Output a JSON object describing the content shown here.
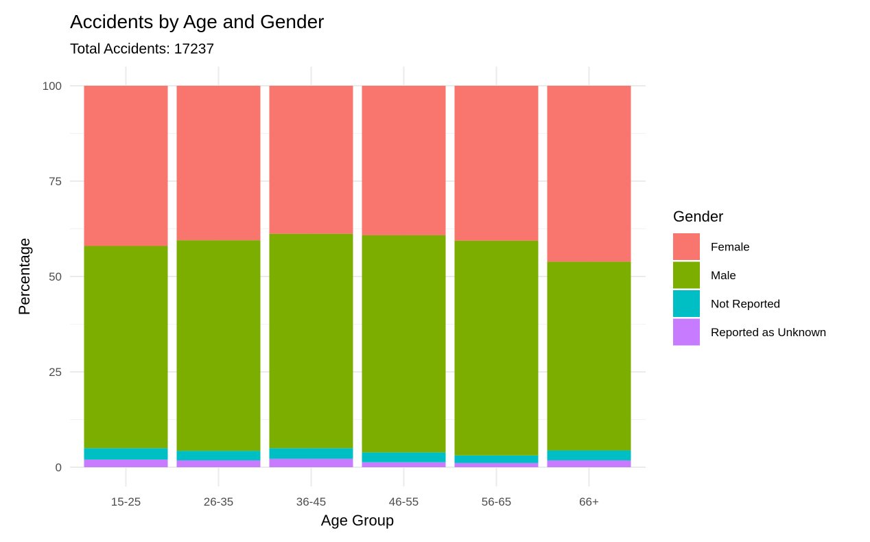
{
  "chart_data": {
    "type": "bar",
    "stacked": true,
    "title": "Accidents by Age and Gender",
    "subtitle": "Total Accidents:  17237",
    "xlabel": "Age Group",
    "ylabel": "Percentage",
    "ylim": [
      0,
      100
    ],
    "yticks": [
      0,
      25,
      50,
      75,
      100
    ],
    "categories": [
      "15-25",
      "26-35",
      "36-45",
      "46-55",
      "56-65",
      "66+"
    ],
    "series": [
      {
        "name": "Reported as Unknown",
        "color": "#C77CFF",
        "values": [
          2.0,
          1.8,
          2.2,
          1.3,
          1.1,
          1.8
        ]
      },
      {
        "name": "Not Reported",
        "color": "#00BFC4",
        "values": [
          3.0,
          2.5,
          2.8,
          2.6,
          2.0,
          2.6
        ]
      },
      {
        "name": "Male",
        "color": "#7CAE00",
        "values": [
          53.0,
          55.2,
          56.2,
          56.9,
          56.3,
          49.5
        ]
      },
      {
        "name": "Female",
        "color": "#F8766D",
        "values": [
          42.0,
          40.5,
          38.8,
          39.2,
          40.6,
          46.1
        ]
      }
    ],
    "legend": {
      "title": "Gender",
      "position": "right",
      "order": [
        "Female",
        "Male",
        "Not Reported",
        "Reported as Unknown"
      ]
    },
    "grid": true
  }
}
